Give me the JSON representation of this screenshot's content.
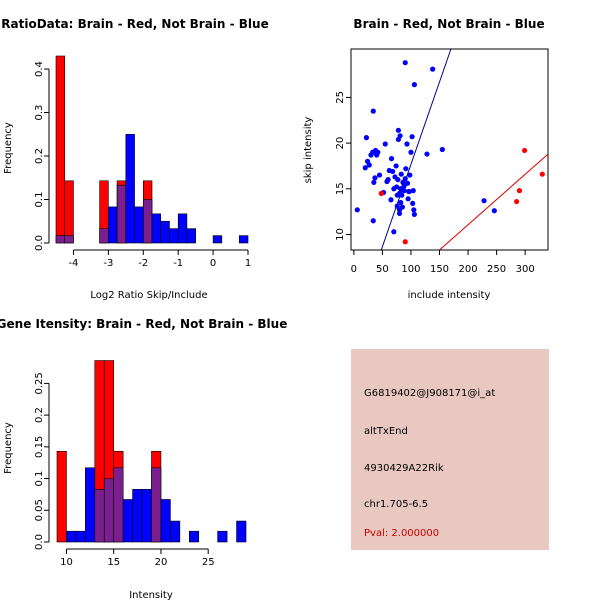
{
  "colors": {
    "red": "#ff0000",
    "blue": "#0000ff",
    "overlap": "#7b1f8f",
    "line_blue": "#00008b",
    "line_red": "#dd0000",
    "info_bg": "#e8c8c0",
    "pval": "#cc0000"
  },
  "chart_data": [
    {
      "id": "ratio-hist",
      "type": "bar",
      "title": "RatioData: Brain - Red, Not Brain - Blue",
      "xlabel": "Log2 Ratio Skip/Include",
      "ylabel": "Frequency",
      "xlim": [
        -4.5,
        1.0
      ],
      "ylim": [
        0,
        0.43
      ],
      "xticks": [
        -4,
        -3,
        -2,
        -1,
        0,
        1
      ],
      "yticks": [
        0.0,
        0.1,
        0.2,
        0.3,
        0.4
      ],
      "bin_width": 0.25,
      "series": [
        {
          "name": "Brain",
          "color": "red",
          "bins": [
            {
              "x0": -4.5,
              "value": 0.43
            },
            {
              "x0": -4.25,
              "value": 0.143
            },
            {
              "x0": -3.25,
              "value": 0.143
            },
            {
              "x0": -2.75,
              "value": 0.143
            },
            {
              "x0": -2.0,
              "value": 0.143
            }
          ]
        },
        {
          "name": "Not Brain",
          "color": "blue",
          "bins": [
            {
              "x0": -4.5,
              "value": 0.017
            },
            {
              "x0": -4.25,
              "value": 0.017
            },
            {
              "x0": -3.25,
              "value": 0.033
            },
            {
              "x0": -3.0,
              "value": 0.083
            },
            {
              "x0": -2.75,
              "value": 0.133
            },
            {
              "x0": -2.5,
              "value": 0.25
            },
            {
              "x0": -2.25,
              "value": 0.083
            },
            {
              "x0": -2.0,
              "value": 0.1
            },
            {
              "x0": -1.75,
              "value": 0.067
            },
            {
              "x0": -1.5,
              "value": 0.05
            },
            {
              "x0": -1.25,
              "value": 0.033
            },
            {
              "x0": -1.0,
              "value": 0.067
            },
            {
              "x0": -0.75,
              "value": 0.033
            },
            {
              "x0": 0.0,
              "value": 0.017
            },
            {
              "x0": 0.75,
              "value": 0.017
            }
          ]
        }
      ]
    },
    {
      "id": "scatter",
      "type": "scatter",
      "title": "Brain - Red, Not Brain - Blue",
      "xlabel": "include intensity",
      "ylabel": "skip intensity",
      "xlim": [
        -5,
        340
      ],
      "ylim": [
        8.3,
        30.3
      ],
      "xticks": [
        0,
        50,
        100,
        150,
        200,
        250,
        300
      ],
      "yticks": [
        10,
        15,
        20,
        25
      ],
      "lines": [
        {
          "name": "not-brain-fit",
          "color": "line_blue",
          "x": [
            48,
            170
          ],
          "y": [
            8.3,
            30.3
          ]
        },
        {
          "name": "brain-fit",
          "color": "line_red",
          "x": [
            150,
            340
          ],
          "y": [
            8.3,
            18.8
          ]
        }
      ],
      "series": [
        {
          "name": "Not Brain",
          "color": "blue",
          "points": [
            [
              6,
              12.7
            ],
            [
              20,
              17.3
            ],
            [
              22,
              20.6
            ],
            [
              24,
              18.0
            ],
            [
              27,
              17.6
            ],
            [
              30,
              18.7
            ],
            [
              33,
              19.0
            ],
            [
              34,
              23.5
            ],
            [
              34,
              11.5
            ],
            [
              35,
              15.7
            ],
            [
              37,
              16.2
            ],
            [
              38,
              19.2
            ],
            [
              40,
              18.7
            ],
            [
              42,
              19.0
            ],
            [
              45,
              16.5
            ],
            [
              52,
              14.6
            ],
            [
              55,
              19.9
            ],
            [
              58,
              15.8
            ],
            [
              60,
              16.0
            ],
            [
              62,
              17.0
            ],
            [
              65,
              13.8
            ],
            [
              66,
              18.3
            ],
            [
              68,
              16.9
            ],
            [
              70,
              15.0
            ],
            [
              70,
              10.3
            ],
            [
              72,
              16.3
            ],
            [
              74,
              17.5
            ],
            [
              75,
              15.2
            ],
            [
              76,
              14.3
            ],
            [
              76,
              13.1
            ],
            [
              77,
              16.0
            ],
            [
              78,
              20.4
            ],
            [
              78,
              21.4
            ],
            [
              80,
              14.5
            ],
            [
              80,
              12.7
            ],
            [
              80,
              12.3
            ],
            [
              81,
              20.8
            ],
            [
              82,
              15.0
            ],
            [
              82,
              13.5
            ],
            [
              83,
              16.6
            ],
            [
              84,
              14.3
            ],
            [
              85,
              13.0
            ],
            [
              86,
              15.7
            ],
            [
              88,
              15.3
            ],
            [
              88,
              14.8
            ],
            [
              90,
              16.1
            ],
            [
              90,
              28.8
            ],
            [
              91,
              17.2
            ],
            [
              93,
              19.9
            ],
            [
              94,
              15.6
            ],
            [
              95,
              13.9
            ],
            [
              96,
              14.7
            ],
            [
              97,
              14.7
            ],
            [
              98,
              16.5
            ],
            [
              100,
              19.0
            ],
            [
              102,
              20.7
            ],
            [
              103,
              13.4
            ],
            [
              104,
              14.8
            ],
            [
              105,
              12.7
            ],
            [
              106,
              12.2
            ],
            [
              106,
              26.4
            ],
            [
              128,
              18.8
            ],
            [
              138,
              28.1
            ],
            [
              155,
              19.3
            ],
            [
              228,
              13.7
            ],
            [
              246,
              12.6
            ]
          ]
        },
        {
          "name": "Brain",
          "color": "red",
          "points": [
            [
              48,
              14.5
            ],
            [
              90,
              9.2
            ],
            [
              285,
              13.6
            ],
            [
              290,
              14.8
            ],
            [
              299,
              19.2
            ],
            [
              330,
              16.6
            ]
          ]
        }
      ]
    },
    {
      "id": "gene-hist",
      "type": "bar",
      "title": "Gene Itensity: Brain - Red, Not Brain - Blue",
      "xlabel": "Intensity",
      "ylabel": "Frequency",
      "xlim": [
        9,
        29
      ],
      "ylim": [
        0,
        0.29
      ],
      "xticks": [
        10,
        15,
        20,
        25
      ],
      "yticks": [
        0.0,
        0.05,
        0.1,
        0.15,
        0.2,
        0.25
      ],
      "bin_width": 1,
      "series": [
        {
          "name": "Brain",
          "color": "red",
          "bins": [
            {
              "x0": 9,
              "value": 0.143
            },
            {
              "x0": 13,
              "value": 0.286
            },
            {
              "x0": 14,
              "value": 0.286
            },
            {
              "x0": 15,
              "value": 0.143
            },
            {
              "x0": 19,
              "value": 0.143
            }
          ]
        },
        {
          "name": "Not Brain",
          "color": "blue",
          "bins": [
            {
              "x0": 10,
              "value": 0.017
            },
            {
              "x0": 11,
              "value": 0.017
            },
            {
              "x0": 12,
              "value": 0.117
            },
            {
              "x0": 13,
              "value": 0.083
            },
            {
              "x0": 14,
              "value": 0.1
            },
            {
              "x0": 15,
              "value": 0.117
            },
            {
              "x0": 16,
              "value": 0.067
            },
            {
              "x0": 17,
              "value": 0.083
            },
            {
              "x0": 18,
              "value": 0.083
            },
            {
              "x0": 19,
              "value": 0.117
            },
            {
              "x0": 20,
              "value": 0.067
            },
            {
              "x0": 21,
              "value": 0.033
            },
            {
              "x0": 23,
              "value": 0.017
            },
            {
              "x0": 26,
              "value": 0.017
            },
            {
              "x0": 28,
              "value": 0.033
            }
          ]
        }
      ]
    }
  ],
  "info_panel": {
    "probe_id": "G6819402@J908171@i_at",
    "event_type": "altTxEnd",
    "gene_name": "4930429A22Rik",
    "location": "chr1.705-6.5",
    "pval": "Pval: 2.000000"
  }
}
